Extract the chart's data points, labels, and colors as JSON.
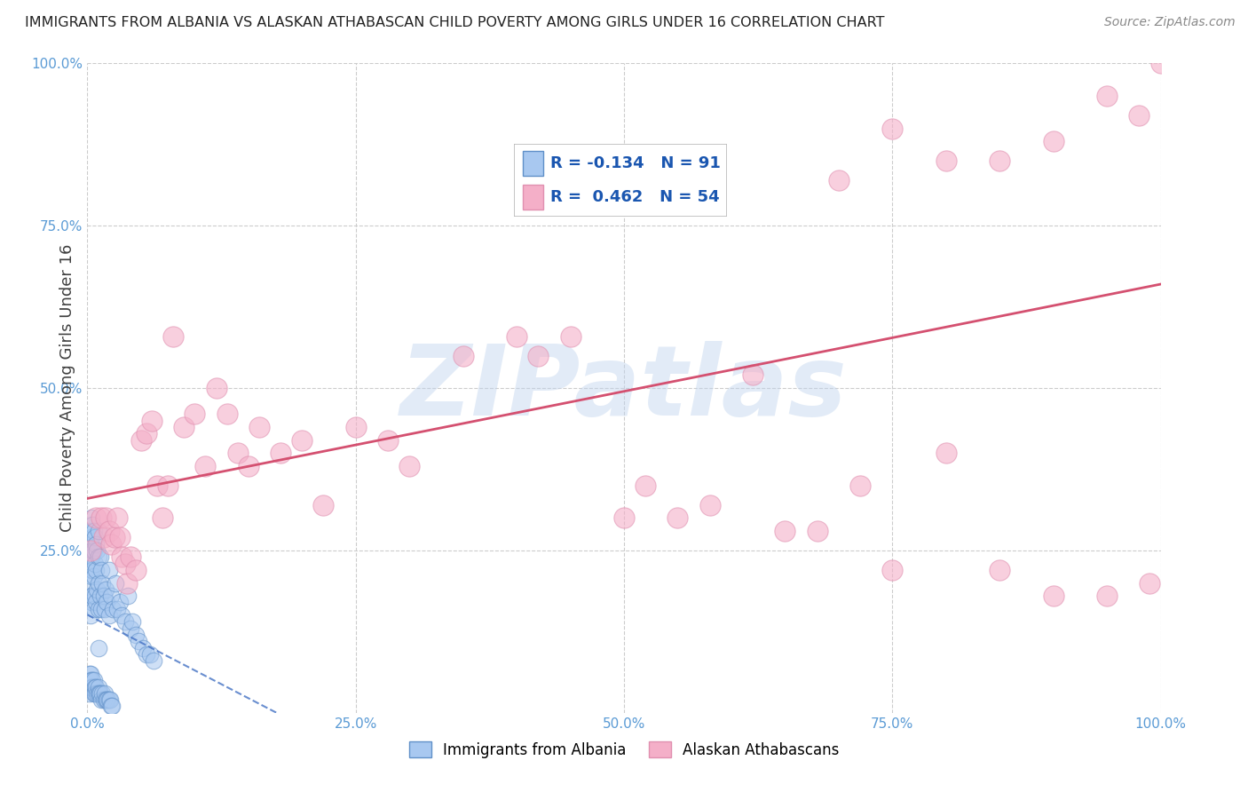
{
  "title": "IMMIGRANTS FROM ALBANIA VS ALASKAN ATHABASCAN CHILD POVERTY AMONG GIRLS UNDER 16 CORRELATION CHART",
  "source": "Source: ZipAtlas.com",
  "ylabel": "Child Poverty Among Girls Under 16",
  "legend_label1": "Immigrants from Albania",
  "legend_label2": "Alaskan Athabascans",
  "R1": -0.134,
  "N1": 91,
  "R2": 0.462,
  "N2": 54,
  "color1": "#a8c8f0",
  "color2": "#f4afc8",
  "trendline1_color": "#4472c4",
  "trendline2_color": "#d45070",
  "watermark": "ZIPatlas",
  "watermark_color_zip": "#c0d4ee",
  "watermark_color_atlas": "#8ab4d8",
  "background": "#ffffff",
  "xlim": [
    0,
    1
  ],
  "ylim": [
    0,
    1
  ],
  "xtick_vals": [
    0.0,
    0.25,
    0.5,
    0.75,
    1.0
  ],
  "xticklabels": [
    "0.0%",
    "25.0%",
    "50.0%",
    "75.0%",
    "100.0%"
  ],
  "ytick_vals": [
    0.25,
    0.5,
    0.75,
    1.0
  ],
  "yticklabels": [
    "25.0%",
    "50.0%",
    "75.0%",
    "100.0%"
  ],
  "blue_x": [
    0.003,
    0.003,
    0.003,
    0.003,
    0.003,
    0.003,
    0.003,
    0.004,
    0.004,
    0.004,
    0.004,
    0.004,
    0.005,
    0.005,
    0.005,
    0.005,
    0.006,
    0.006,
    0.006,
    0.006,
    0.007,
    0.007,
    0.007,
    0.008,
    0.008,
    0.008,
    0.009,
    0.009,
    0.01,
    0.01,
    0.01,
    0.01,
    0.01,
    0.012,
    0.012,
    0.013,
    0.013,
    0.014,
    0.015,
    0.016,
    0.017,
    0.018,
    0.02,
    0.02,
    0.022,
    0.024,
    0.026,
    0.028,
    0.03,
    0.032,
    0.035,
    0.038,
    0.04,
    0.042,
    0.045,
    0.048,
    0.052,
    0.055,
    0.058,
    0.062,
    0.002,
    0.002,
    0.002,
    0.002,
    0.003,
    0.003,
    0.004,
    0.004,
    0.005,
    0.005,
    0.006,
    0.006,
    0.007,
    0.007,
    0.008,
    0.009,
    0.01,
    0.01,
    0.011,
    0.012,
    0.013,
    0.014,
    0.015,
    0.016,
    0.017,
    0.018,
    0.019,
    0.02,
    0.021,
    0.022,
    0.023
  ],
  "blue_y": [
    0.28,
    0.26,
    0.24,
    0.22,
    0.2,
    0.18,
    0.15,
    0.3,
    0.27,
    0.24,
    0.21,
    0.17,
    0.29,
    0.25,
    0.22,
    0.18,
    0.28,
    0.25,
    0.21,
    0.16,
    0.27,
    0.23,
    0.18,
    0.26,
    0.22,
    0.17,
    0.25,
    0.19,
    0.28,
    0.24,
    0.2,
    0.16,
    0.1,
    0.24,
    0.18,
    0.22,
    0.16,
    0.2,
    0.18,
    0.16,
    0.19,
    0.17,
    0.22,
    0.15,
    0.18,
    0.16,
    0.2,
    0.16,
    0.17,
    0.15,
    0.14,
    0.18,
    0.13,
    0.14,
    0.12,
    0.11,
    0.1,
    0.09,
    0.09,
    0.08,
    0.06,
    0.05,
    0.04,
    0.03,
    0.06,
    0.04,
    0.05,
    0.04,
    0.05,
    0.04,
    0.05,
    0.03,
    0.04,
    0.03,
    0.04,
    0.03,
    0.04,
    0.03,
    0.03,
    0.03,
    0.02,
    0.03,
    0.02,
    0.03,
    0.02,
    0.02,
    0.02,
    0.02,
    0.02,
    0.01,
    0.01
  ],
  "pink_x": [
    0.003,
    0.008,
    0.013,
    0.015,
    0.017,
    0.02,
    0.022,
    0.025,
    0.028,
    0.03,
    0.032,
    0.035,
    0.037,
    0.04,
    0.045,
    0.05,
    0.055,
    0.06,
    0.065,
    0.07,
    0.075,
    0.08,
    0.09,
    0.1,
    0.11,
    0.12,
    0.13,
    0.14,
    0.15,
    0.16,
    0.18,
    0.2,
    0.22,
    0.25,
    0.28,
    0.3,
    0.35,
    0.4,
    0.42,
    0.45,
    0.5,
    0.52,
    0.55,
    0.58,
    0.62,
    0.65,
    0.68,
    0.72,
    0.75,
    0.8,
    0.85,
    0.9,
    0.95,
    0.99
  ],
  "pink_y": [
    0.25,
    0.3,
    0.3,
    0.27,
    0.3,
    0.28,
    0.26,
    0.27,
    0.3,
    0.27,
    0.24,
    0.23,
    0.2,
    0.24,
    0.22,
    0.42,
    0.43,
    0.45,
    0.35,
    0.3,
    0.35,
    0.58,
    0.44,
    0.46,
    0.38,
    0.5,
    0.46,
    0.4,
    0.38,
    0.44,
    0.4,
    0.42,
    0.32,
    0.44,
    0.42,
    0.38,
    0.55,
    0.58,
    0.55,
    0.58,
    0.3,
    0.35,
    0.3,
    0.32,
    0.52,
    0.28,
    0.28,
    0.35,
    0.22,
    0.4,
    0.22,
    0.18,
    0.18,
    0.2
  ],
  "pink_top_x": [
    0.7,
    0.75,
    0.8,
    0.85,
    0.9,
    0.95,
    0.98,
    1.0
  ],
  "pink_top_y": [
    0.82,
    0.9,
    0.85,
    0.85,
    0.88,
    0.95,
    0.92,
    1.0
  ]
}
